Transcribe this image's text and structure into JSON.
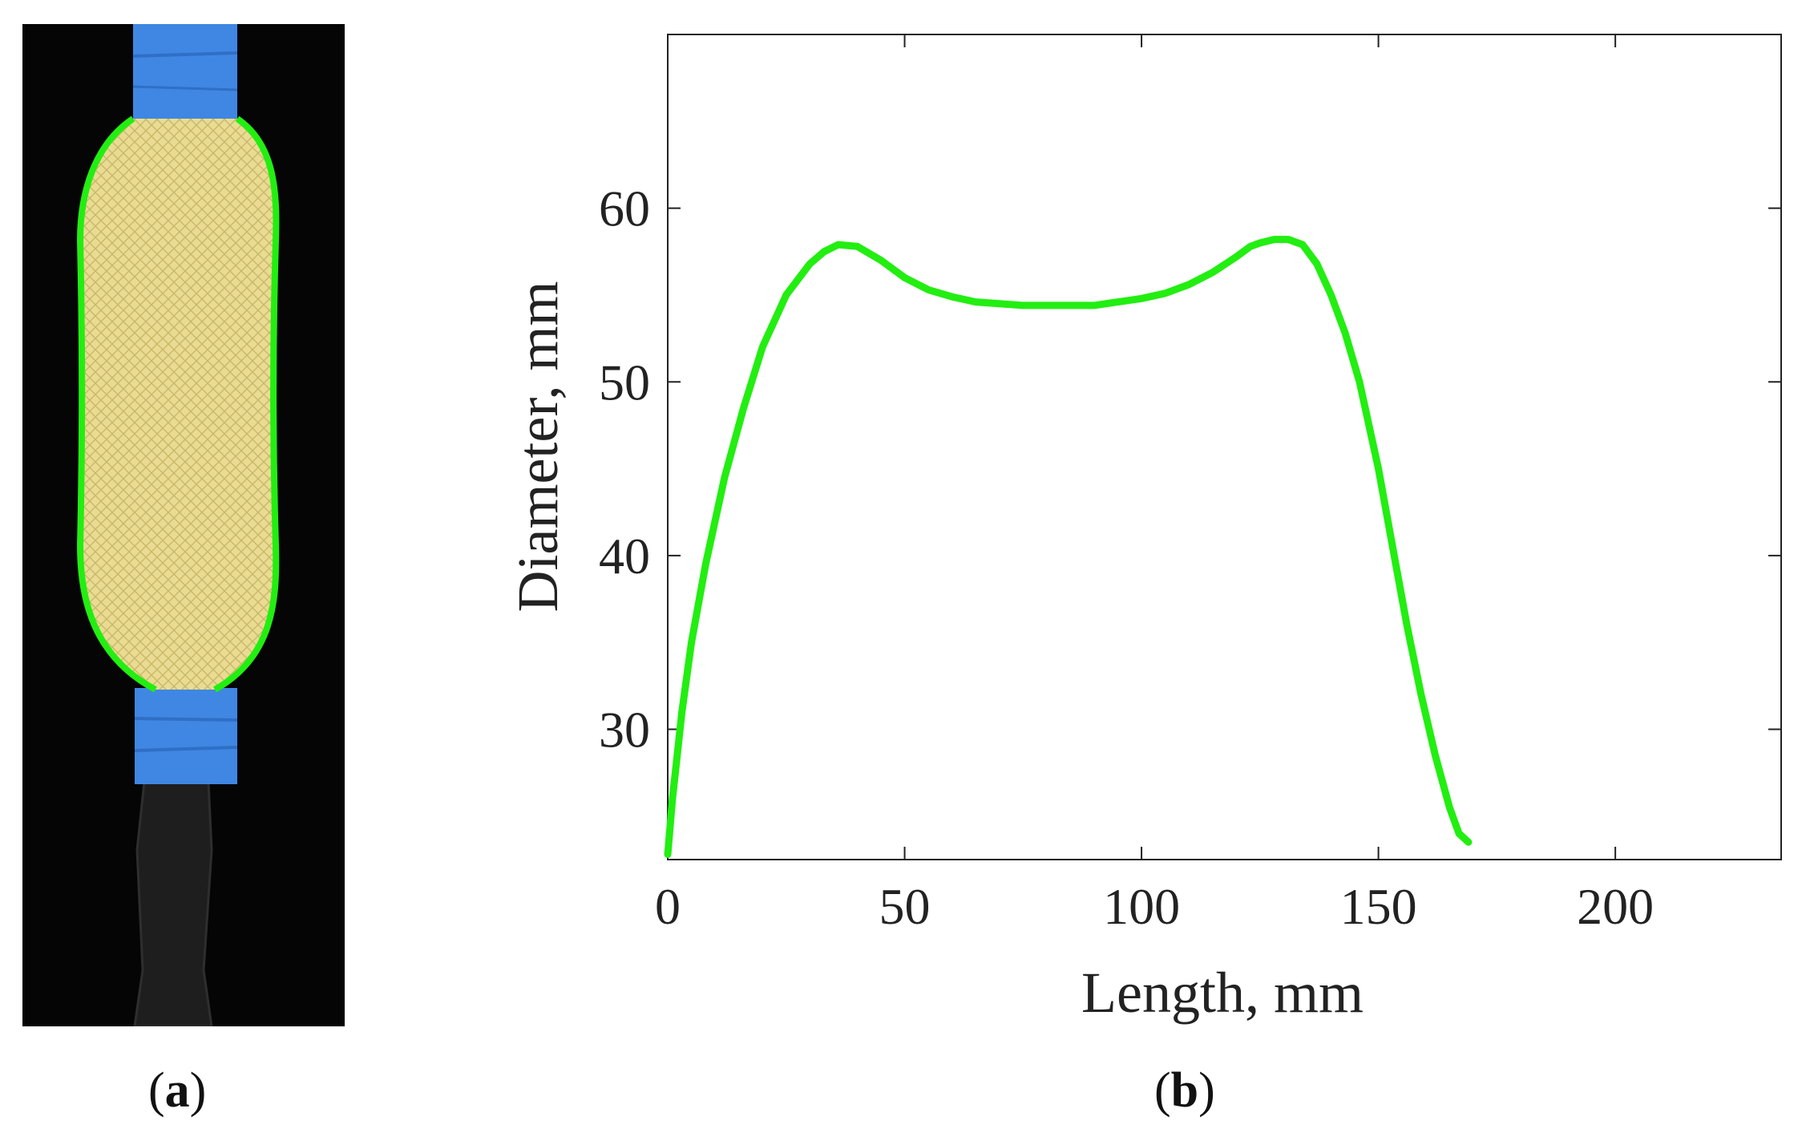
{
  "panel_a": {
    "label_open": "(",
    "label_letter": "a",
    "label_close": ")"
  },
  "panel_b": {
    "label_open": "(",
    "label_letter": "b",
    "label_close": ")"
  },
  "colors": {
    "curve": "#22ee11",
    "tape": "#3f87e3",
    "fabric": "#e9dc92",
    "axis": "#222222"
  },
  "chart_data": {
    "type": "line",
    "title": "",
    "xlabel": "Length, mm",
    "ylabel": "Diameter, mm",
    "xlim": [
      0,
      235
    ],
    "ylim": [
      22.5,
      70
    ],
    "xticks": [
      0,
      50,
      100,
      150,
      200
    ],
    "yticks": [
      30,
      40,
      50,
      60
    ],
    "grid": false,
    "series": [
      {
        "name": "diameter",
        "x": [
          0,
          1,
          3,
          5,
          8,
          12,
          16,
          20,
          25,
          30,
          33,
          36,
          40,
          45,
          50,
          55,
          60,
          65,
          70,
          75,
          80,
          85,
          90,
          95,
          100,
          105,
          110,
          115,
          120,
          123,
          125,
          128,
          131,
          134,
          137,
          140,
          143,
          146,
          150,
          153,
          156,
          159,
          162,
          165,
          167,
          169
        ],
        "values": [
          22.8,
          26.0,
          31.0,
          35.0,
          39.5,
          44.5,
          48.5,
          52.0,
          55.0,
          56.8,
          57.5,
          57.9,
          57.8,
          57.0,
          56.0,
          55.3,
          54.9,
          54.6,
          54.5,
          54.4,
          54.4,
          54.4,
          54.4,
          54.6,
          54.8,
          55.1,
          55.6,
          56.3,
          57.2,
          57.8,
          58.0,
          58.2,
          58.2,
          57.9,
          56.8,
          55.0,
          52.8,
          50.0,
          45.0,
          40.5,
          36.0,
          32.0,
          28.5,
          25.5,
          24.0,
          23.5
        ]
      }
    ]
  }
}
